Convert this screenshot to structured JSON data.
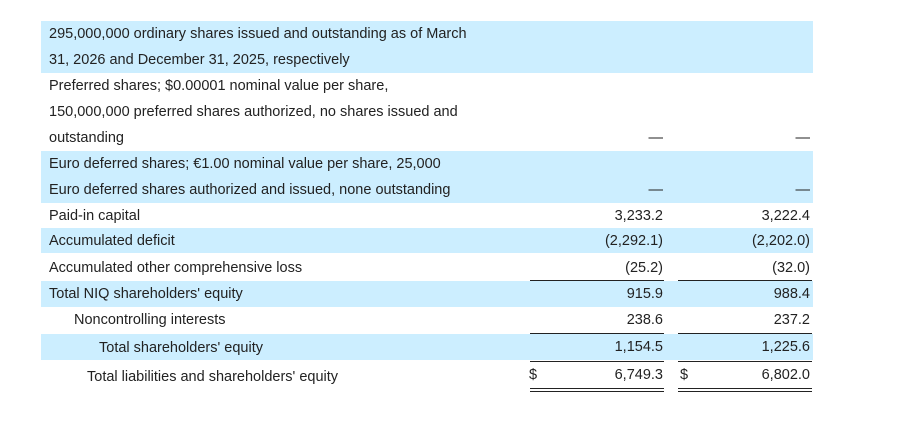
{
  "rows": [
    {
      "label_lines": [
        "295,000,000 ordinary shares issued and outstanding as of March",
        "31, 2026 and December 31, 2025, respectively"
      ],
      "v1": "",
      "v2": ""
    },
    {
      "label_lines": [
        "Preferred shares; $0.00001 nominal value per share,",
        "150,000,000 preferred shares authorized, no shares issued and",
        "outstanding"
      ],
      "v1": "—",
      "v2": "—"
    },
    {
      "label_lines": [
        "Euro deferred shares; €1.00 nominal value per share, 25,000",
        "Euro deferred shares authorized and issued, none outstanding"
      ],
      "v1": "—",
      "v2": "—"
    },
    {
      "label": "Paid-in capital",
      "v1": "3,233.2",
      "v2": "3,222.4"
    },
    {
      "label": "Accumulated deficit",
      "v1": "(2,292.1)",
      "v2": "(2,202.0)"
    },
    {
      "label": "Accumulated other comprehensive loss",
      "v1": "(25.2)",
      "v2": "(32.0)"
    },
    {
      "label": "Total NIQ shareholders' equity",
      "v1": "915.9",
      "v2": "988.4"
    },
    {
      "label": "Noncontrolling interests",
      "v1": "238.6",
      "v2": "237.2"
    },
    {
      "label": "Total shareholders' equity",
      "v1": "1,154.5",
      "v2": "1,225.6"
    },
    {
      "label": "Total liabilities and shareholders' equity",
      "v1": "6,749.3",
      "v2": "6,802.0",
      "currency": "$"
    }
  ]
}
